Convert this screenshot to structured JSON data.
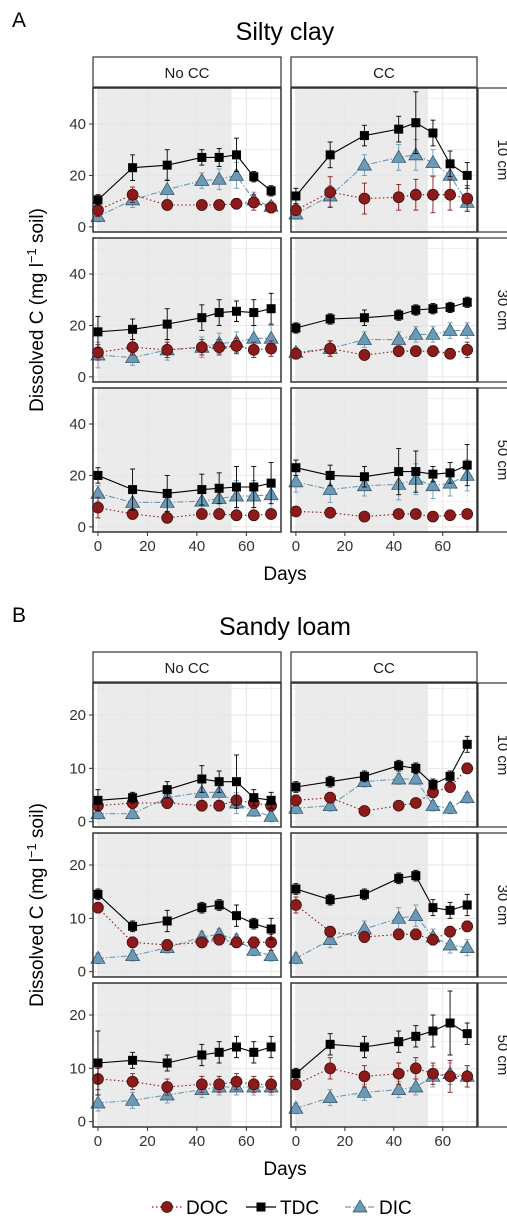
{
  "colors": {
    "doc": "#8b1a1a",
    "tdc": "#000000",
    "dic": "#6a9ab5",
    "shade": "#ebebeb",
    "grid": "#e6e6e6",
    "strip_bg": "#ffffff",
    "panel_border": "#333333"
  },
  "legend": {
    "placement": "bottom",
    "items": [
      {
        "key": "doc",
        "label": "DOC",
        "shape": "circle",
        "line": "dotted"
      },
      {
        "key": "tdc",
        "label": "TDC",
        "shape": "square",
        "line": "solid"
      },
      {
        "key": "dic",
        "label": "DIC",
        "shape": "triangle",
        "line": "dashdot"
      }
    ]
  },
  "chart_data": [
    {
      "type": "line",
      "panel_letter": "A",
      "title": "Silty clay",
      "ylabel_main": "Dissolved C (mg l",
      "ylabel_sup": "−1",
      "ylabel_tail": " soil)",
      "xlabel": "Days",
      "columns": [
        "No CC",
        "CC"
      ],
      "rows": [
        "10 cm",
        "30 cm",
        "50 cm"
      ],
      "xlim": [
        -2,
        74
      ],
      "xticks": [
        0,
        20,
        40,
        60
      ],
      "ylim": [
        -2,
        54
      ],
      "yticks": [
        0,
        20,
        40
      ],
      "shaded_x": [
        0,
        54
      ],
      "grid": true,
      "x": [
        0,
        14,
        28,
        42,
        49,
        56,
        63,
        70
      ],
      "panels": [
        {
          "row": 0,
          "col": 0,
          "TDC": [
            10.5,
            23,
            24,
            27,
            27,
            28,
            19.5,
            14
          ],
          "TDC_err": [
            2,
            5,
            6,
            3,
            3.5,
            6.5,
            2,
            2
          ],
          "DOC": [
            6.5,
            12.5,
            8.5,
            8.5,
            8.5,
            9,
            9.5,
            7.5
          ],
          "DOC_err": [
            2.5,
            3,
            2,
            2,
            2,
            2,
            3,
            2
          ],
          "DIC": [
            4,
            10.5,
            14.5,
            18,
            18.5,
            20,
            10.5,
            8
          ],
          "DIC_err": [
            2,
            3,
            4,
            3,
            4,
            5,
            3,
            2
          ]
        },
        {
          "row": 0,
          "col": 1,
          "TDC": [
            12,
            28,
            35.5,
            38,
            40.5,
            36.5,
            24.5,
            20
          ],
          "TDC_err": [
            3,
            5,
            4,
            5,
            12,
            5,
            5,
            5
          ],
          "DOC": [
            6.5,
            13.5,
            11,
            11.5,
            12.5,
            12.5,
            12.5,
            11
          ],
          "DOC_err": [
            2,
            6,
            6,
            5,
            6,
            7,
            6,
            5
          ],
          "DIC": [
            5,
            12,
            24,
            27,
            28,
            25,
            20,
            9.5
          ],
          "DIC_err": [
            2,
            4,
            4,
            5,
            6,
            5,
            6,
            3
          ]
        },
        {
          "row": 1,
          "col": 0,
          "TDC": [
            17.5,
            18.5,
            20.5,
            23,
            25,
            25.5,
            25,
            26.5
          ],
          "TDC_err": [
            6,
            4,
            6,
            5,
            5,
            4,
            5,
            6
          ],
          "DOC": [
            9.5,
            11.5,
            10.5,
            11.5,
            11.5,
            12,
            10.5,
            11
          ],
          "DOC_err": [
            3,
            3,
            3,
            3,
            3,
            3,
            3,
            3
          ],
          "DIC": [
            8.5,
            7.5,
            10.5,
            11.5,
            13,
            13.5,
            15,
            15
          ],
          "DIC_err": [
            5,
            3,
            4,
            4,
            4,
            4,
            5,
            5
          ]
        },
        {
          "row": 1,
          "col": 1,
          "TDC": [
            19,
            22.5,
            23,
            24,
            26,
            26.5,
            27,
            29
          ],
          "TDC_err": [
            2,
            2,
            3,
            2,
            2,
            2,
            2,
            2
          ],
          "DOC": [
            9,
            11,
            8.5,
            10,
            10,
            10,
            9,
            10.5
          ],
          "DOC_err": [
            2,
            3,
            2,
            2,
            2,
            2,
            2,
            3
          ],
          "DIC": [
            9.5,
            11,
            14.5,
            14.5,
            16.5,
            16.5,
            18,
            18
          ],
          "DIC_err": [
            2,
            3,
            3,
            3,
            3,
            3,
            3,
            3
          ]
        },
        {
          "row": 2,
          "col": 0,
          "TDC": [
            20,
            14.5,
            13,
            14.5,
            15,
            15.5,
            15.5,
            17
          ],
          "TDC_err": [
            3,
            8,
            7,
            6,
            6,
            8,
            8,
            8
          ],
          "DOC": [
            7.5,
            5,
            3.5,
            5,
            5,
            4.5,
            4.5,
            5
          ],
          "DOC_err": [
            4,
            2,
            2,
            2,
            2,
            2,
            2,
            2
          ],
          "DIC": [
            13,
            9.5,
            9.5,
            10,
            11,
            12,
            12,
            12.5
          ],
          "DIC_err": [
            3,
            4,
            5,
            5,
            5,
            6,
            6,
            6
          ]
        },
        {
          "row": 2,
          "col": 1,
          "TDC": [
            23,
            20,
            19.5,
            21.5,
            21.5,
            20.5,
            21,
            24
          ],
          "TDC_err": [
            3,
            4,
            4,
            9,
            8,
            3,
            4,
            8
          ],
          "DOC": [
            6,
            5.5,
            4,
            5,
            5,
            4,
            4.5,
            5
          ],
          "DOC_err": [
            1.5,
            1.5,
            1,
            1.5,
            1.5,
            1.5,
            1.5,
            1.5
          ],
          "DIC": [
            17.5,
            14.5,
            16,
            16.5,
            18.5,
            16,
            17,
            20
          ],
          "DIC_err": [
            4,
            5,
            4,
            6,
            6,
            5,
            5,
            6
          ]
        }
      ]
    },
    {
      "type": "line",
      "panel_letter": "B",
      "title": "Sandy loam",
      "ylabel_main": "Dissolved C (mg l",
      "ylabel_sup": "−1",
      "ylabel_tail": " soil)",
      "xlabel": "Days",
      "columns": [
        "No CC",
        "CC"
      ],
      "rows": [
        "10 cm",
        "30 cm",
        "50 cm"
      ],
      "xlim": [
        -2,
        74
      ],
      "xticks": [
        0,
        20,
        40,
        60
      ],
      "ylim": [
        -1,
        26
      ],
      "yticks": [
        0,
        10,
        20
      ],
      "shaded_x": [
        0,
        54
      ],
      "grid": true,
      "x": [
        0,
        14,
        28,
        42,
        49,
        56,
        63,
        70
      ],
      "panels": [
        {
          "row": 0,
          "col": 0,
          "TDC": [
            4,
            4.5,
            6,
            8,
            7.5,
            7.5,
            4.5,
            4
          ],
          "TDC_err": [
            2,
            1,
            1.5,
            2.5,
            2,
            5,
            1.5,
            1.5
          ],
          "DOC": [
            3,
            3.5,
            3.5,
            3,
            3,
            4,
            3.5,
            3
          ],
          "DOC_err": [
            1,
            1,
            1,
            1,
            1,
            1,
            1,
            1
          ],
          "DIC": [
            1.5,
            1.5,
            4.5,
            5.5,
            5.5,
            3.5,
            2,
            1
          ],
          "DIC_err": [
            1,
            1,
            2,
            2,
            2,
            2,
            1,
            1
          ]
        },
        {
          "row": 0,
          "col": 1,
          "TDC": [
            6.5,
            7.5,
            8.5,
            10.5,
            10,
            7,
            8.5,
            14.5
          ],
          "TDC_err": [
            1,
            1,
            1,
            1,
            1,
            1,
            1,
            1.5
          ],
          "DOC": [
            4,
            4.5,
            2,
            3,
            3.5,
            5.5,
            6.5,
            10
          ],
          "DOC_err": [
            1,
            1,
            0.5,
            0.5,
            0.5,
            1,
            1,
            1
          ],
          "DIC": [
            2.5,
            3,
            7.5,
            8,
            8,
            3,
            2.5,
            4.5
          ],
          "DIC_err": [
            1,
            1,
            1,
            1,
            1,
            1,
            1,
            1
          ]
        },
        {
          "row": 1,
          "col": 0,
          "TDC": [
            14.5,
            8.5,
            9.5,
            12,
            12.5,
            10.5,
            9,
            8
          ],
          "TDC_err": [
            1,
            1,
            2,
            1,
            1,
            2,
            1,
            2
          ],
          "DOC": [
            12,
            5.5,
            5,
            5.5,
            6,
            5.5,
            5.5,
            5.5
          ],
          "DOC_err": [
            1,
            1,
            1,
            1,
            1,
            1,
            1,
            1.5
          ],
          "DIC": [
            2.5,
            3,
            4.5,
            6.5,
            7,
            6,
            4,
            3
          ],
          "DIC_err": [
            1,
            1,
            1,
            1,
            1,
            1,
            1,
            1
          ]
        },
        {
          "row": 1,
          "col": 1,
          "TDC": [
            15.5,
            13.5,
            14.5,
            17.5,
            18,
            12,
            11.5,
            12.5
          ],
          "TDC_err": [
            1,
            1,
            1,
            1,
            1,
            1.5,
            1.5,
            2
          ],
          "DOC": [
            12.5,
            7.5,
            6.5,
            7,
            7,
            6,
            7.5,
            8.5
          ],
          "DOC_err": [
            1.5,
            1,
            1,
            1,
            1,
            1,
            1,
            1
          ],
          "DIC": [
            2.5,
            6,
            8,
            10,
            10.5,
            6.5,
            5,
            4.5
          ],
          "DIC_err": [
            1,
            1.5,
            1.5,
            2,
            2,
            1.5,
            1.5,
            1.5
          ]
        },
        {
          "row": 2,
          "col": 0,
          "TDC": [
            11,
            11.5,
            11,
            12.5,
            13,
            14,
            13,
            14
          ],
          "TDC_err": [
            6,
            1.5,
            1.5,
            2,
            2,
            2,
            2,
            2
          ],
          "DOC": [
            8,
            7.5,
            6.5,
            7,
            7,
            7.5,
            7,
            7
          ],
          "DOC_err": [
            2,
            1.5,
            1.5,
            1.5,
            1.5,
            1.5,
            1.5,
            1.5
          ],
          "DIC": [
            3.5,
            4,
            5,
            6,
            6.5,
            6.5,
            6.5,
            6.5
          ],
          "DIC_err": [
            1.5,
            1.5,
            1.5,
            1.5,
            1.5,
            1.5,
            1.5,
            1.5
          ]
        },
        {
          "row": 2,
          "col": 1,
          "TDC": [
            9,
            14.5,
            14,
            15,
            16,
            17,
            18.5,
            16.5
          ],
          "TDC_err": [
            1,
            2,
            2,
            2,
            2,
            3,
            6,
            2
          ],
          "DOC": [
            7,
            10,
            8.5,
            9,
            10,
            9,
            8.5,
            8.5
          ],
          "DOC_err": [
            1,
            2,
            2,
            2,
            2,
            2,
            3,
            2
          ],
          "DIC": [
            2.5,
            4.5,
            5.5,
            6,
            6.5,
            8.5,
            9,
            8.5
          ],
          "DIC_err": [
            1,
            1.5,
            1.5,
            1.5,
            1.5,
            2,
            2,
            2
          ]
        }
      ]
    }
  ]
}
